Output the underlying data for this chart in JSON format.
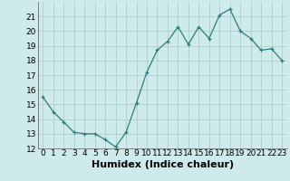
{
  "x": [
    0,
    1,
    2,
    3,
    4,
    5,
    6,
    7,
    8,
    9,
    10,
    11,
    12,
    13,
    14,
    15,
    16,
    17,
    18,
    19,
    20,
    21,
    22,
    23
  ],
  "y": [
    15.5,
    14.5,
    13.8,
    13.1,
    13.0,
    13.0,
    12.6,
    12.1,
    13.1,
    15.1,
    17.2,
    18.7,
    19.3,
    20.3,
    19.1,
    20.3,
    19.5,
    21.1,
    21.5,
    20.0,
    19.5,
    18.7,
    18.8,
    18.0
  ],
  "xlabel": "Humidex (Indice chaleur)",
  "ylim": [
    12,
    22
  ],
  "xlim": [
    -0.5,
    23.5
  ],
  "yticks": [
    12,
    13,
    14,
    15,
    16,
    17,
    18,
    19,
    20,
    21
  ],
  "xticks": [
    0,
    1,
    2,
    3,
    4,
    5,
    6,
    7,
    8,
    9,
    10,
    11,
    12,
    13,
    14,
    15,
    16,
    17,
    18,
    19,
    20,
    21,
    22,
    23
  ],
  "line_color": "#2d7d7d",
  "marker": "+",
  "marker_color": "#2d7d7d",
  "bg_color": "#ceeaea",
  "grid_color": "#aacece",
  "xlabel_fontsize": 8,
  "tick_fontsize": 6.5
}
